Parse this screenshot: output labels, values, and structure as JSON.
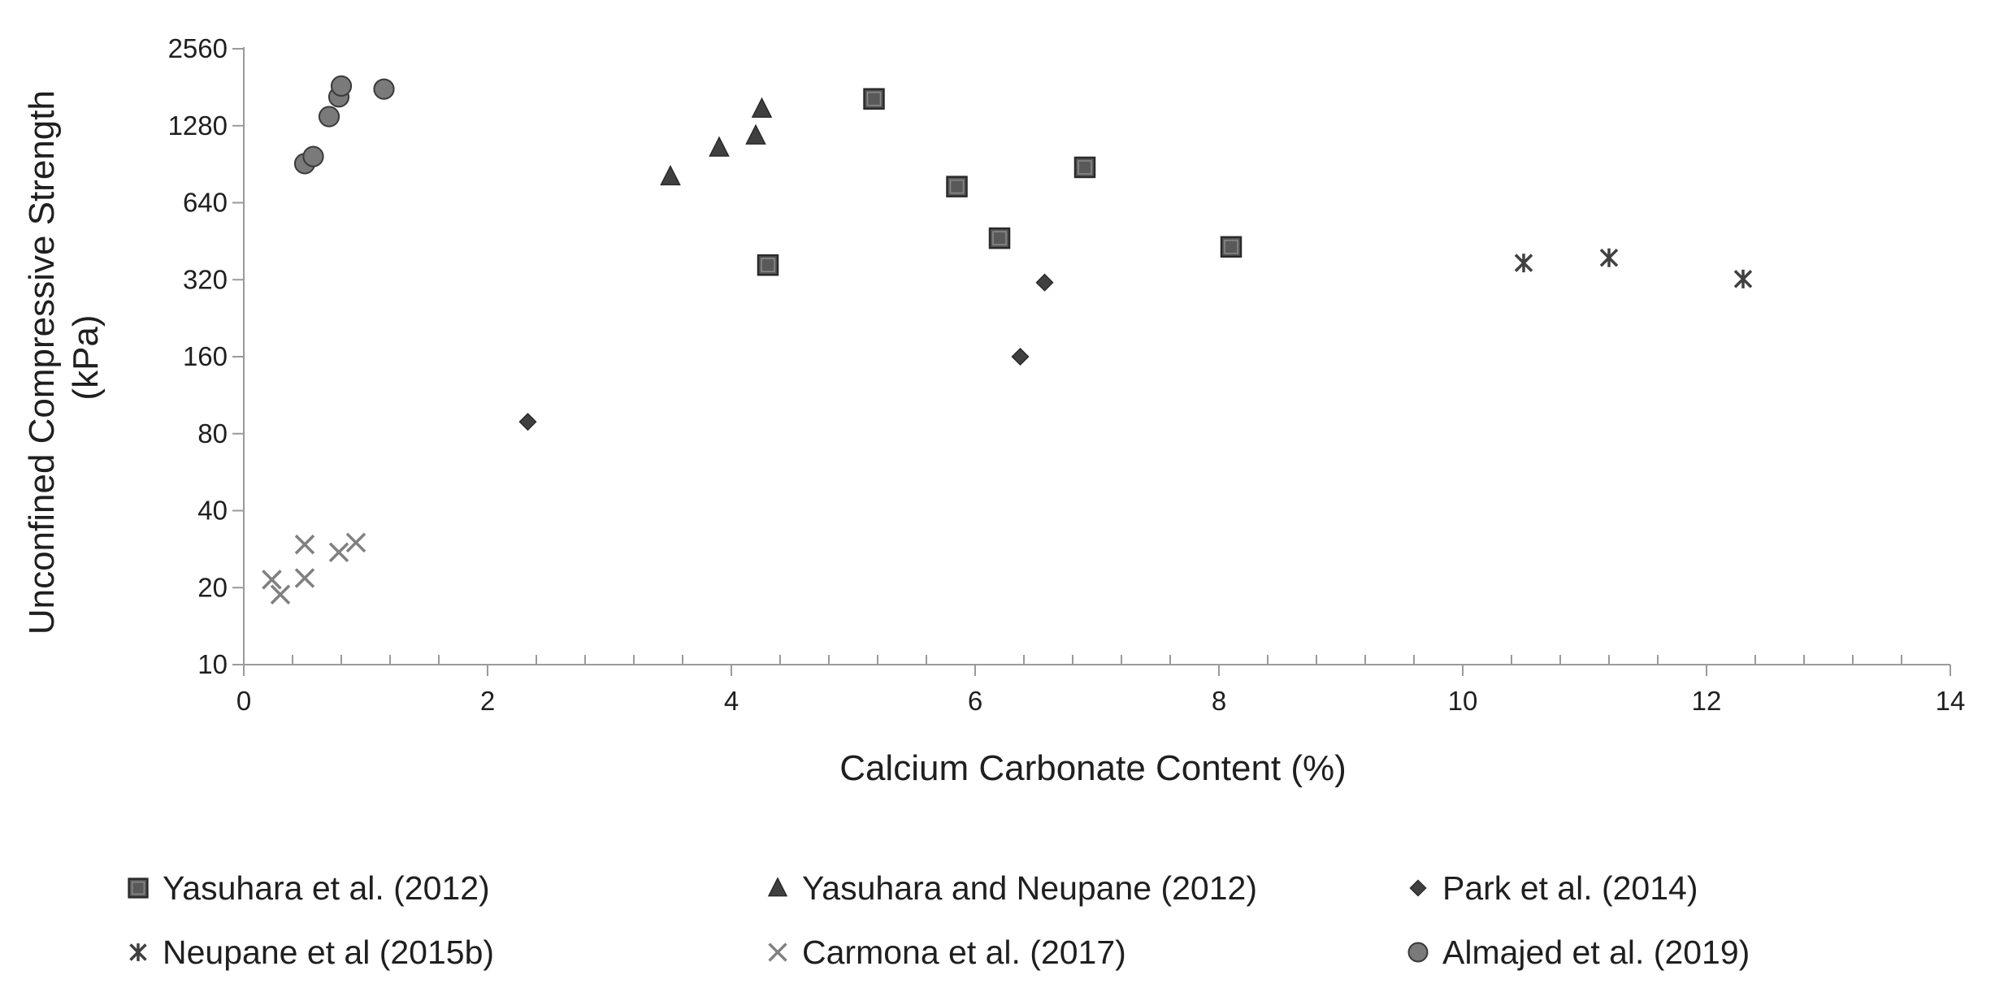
{
  "chart_data": {
    "type": "scatter",
    "title": "",
    "xlabel": "Calcium Carbonate Content (%)",
    "ylabel": [
      "Unconfined Compressive Strength",
      "(kPa)"
    ],
    "xlim": [
      0,
      14
    ],
    "ylim": [
      10,
      2560
    ],
    "y_scale": "log2",
    "x_ticks": [
      "0",
      "2",
      "4",
      "6",
      "8",
      "10",
      "12",
      "14"
    ],
    "y_ticks": [
      "10",
      "20",
      "40",
      "80",
      "160",
      "320",
      "640",
      "1280",
      "2560"
    ],
    "grid": false,
    "legend_position": "bottom",
    "series": [
      {
        "name": "Yasuhara et al. (2012)",
        "marker": "square",
        "color": "#595959",
        "points": [
          [
            4.3,
            365
          ],
          [
            5.17,
            1630
          ],
          [
            5.85,
            740
          ],
          [
            6.2,
            465
          ],
          [
            6.9,
            880
          ],
          [
            8.1,
            430
          ]
        ]
      },
      {
        "name": "Yasuhara and Neupane (2012)",
        "marker": "triangle",
        "color": "#404040",
        "points": [
          [
            3.5,
            810
          ],
          [
            3.9,
            1050
          ],
          [
            4.2,
            1170
          ],
          [
            4.25,
            1490
          ]
        ]
      },
      {
        "name": "Park et al. (2014)",
        "marker": "diamond",
        "color": "#404040",
        "points": [
          [
            2.33,
            89
          ],
          [
            6.37,
            160
          ],
          [
            6.57,
            312
          ]
        ]
      },
      {
        "name": "Neupane et al (2015b)",
        "marker": "asterisk",
        "color": "#404040",
        "points": [
          [
            10.5,
            372
          ],
          [
            11.2,
            390
          ],
          [
            12.3,
            322
          ]
        ]
      },
      {
        "name": "Carmona et al. (2017)",
        "marker": "x",
        "color": "#808080",
        "points": [
          [
            0.23,
            21.5
          ],
          [
            0.3,
            18.8
          ],
          [
            0.5,
            21.8
          ],
          [
            0.5,
            29.5
          ],
          [
            0.78,
            27.5
          ],
          [
            0.92,
            30
          ]
        ]
      },
      {
        "name": "Almajed et al. (2019)",
        "marker": "circle",
        "color": "#7a7a7a",
        "points": [
          [
            0.5,
            910
          ],
          [
            0.57,
            970
          ],
          [
            0.7,
            1390
          ],
          [
            0.78,
            1660
          ],
          [
            0.8,
            1830
          ],
          [
            1.15,
            1780
          ]
        ]
      }
    ]
  }
}
